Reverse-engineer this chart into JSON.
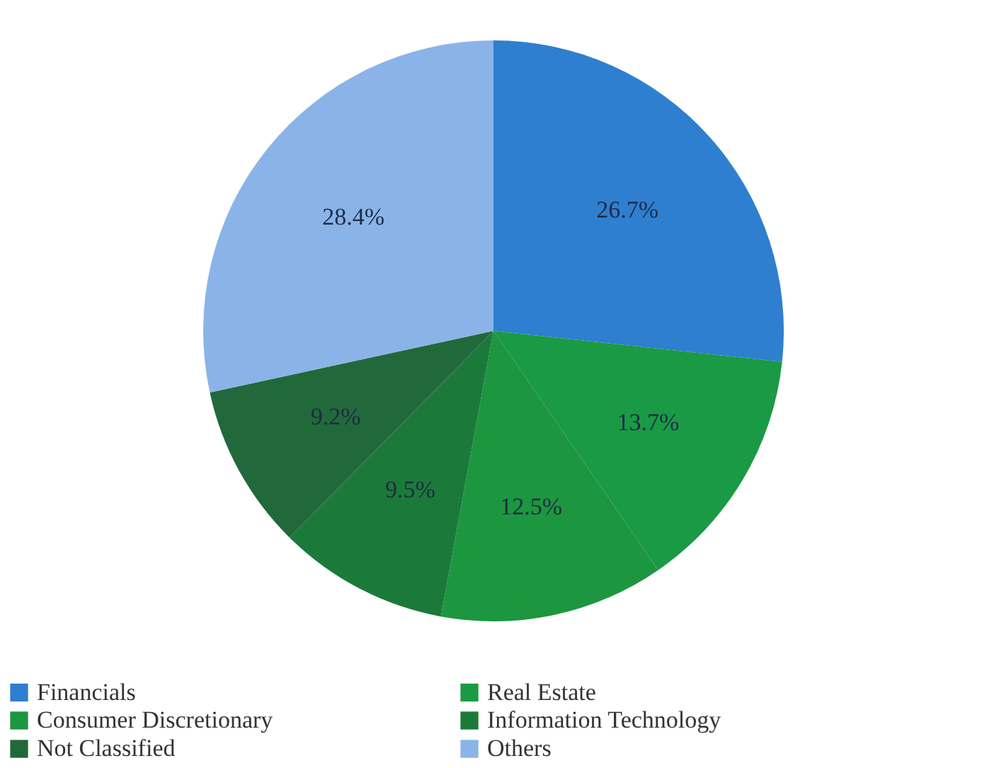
{
  "chart_data": {
    "type": "pie",
    "categories": [
      "Financials",
      "Real Estate",
      "Consumer Discretionary",
      "Information Technology",
      "Not Classified",
      "Others"
    ],
    "values": [
      26.7,
      13.7,
      12.5,
      9.5,
      9.2,
      28.4
    ],
    "value_labels": [
      "26.7%",
      "13.7%",
      "12.5%",
      "9.5%",
      "9.2%",
      "28.4%"
    ],
    "colors": [
      "#2e7fd0",
      "#1a9a45",
      "#1d9640",
      "#1b7a3a",
      "#21693a",
      "#8ab4e8"
    ],
    "legend": "bottom"
  }
}
